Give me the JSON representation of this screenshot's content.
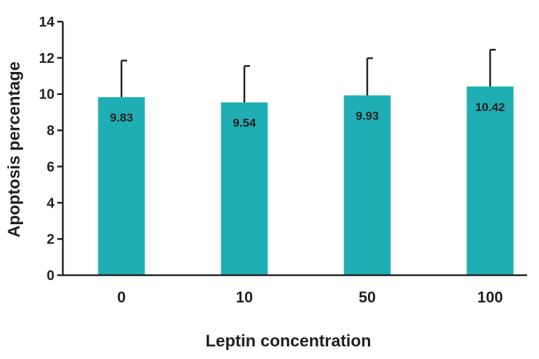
{
  "chart_data": {
    "type": "bar",
    "categories": [
      "0",
      "10",
      "50",
      "100"
    ],
    "values": [
      9.83,
      9.54,
      9.93,
      10.42
    ],
    "error_upper": [
      11.85,
      11.55,
      11.98,
      12.45
    ],
    "data_labels": [
      "9.83",
      "9.54",
      "9.93",
      "10.42"
    ],
    "xlabel": "Leptin concentration",
    "ylabel": "Apoptosis percentage",
    "ylim": [
      0,
      14
    ],
    "yticks": [
      0,
      2,
      4,
      6,
      8,
      10,
      12,
      14
    ],
    "ytick_labels": [
      "0",
      "2",
      "4",
      "6",
      "8",
      "10",
      "12",
      "14"
    ],
    "grid": false,
    "bar_color": "#20aeb5",
    "axis_color": "#231f20"
  }
}
